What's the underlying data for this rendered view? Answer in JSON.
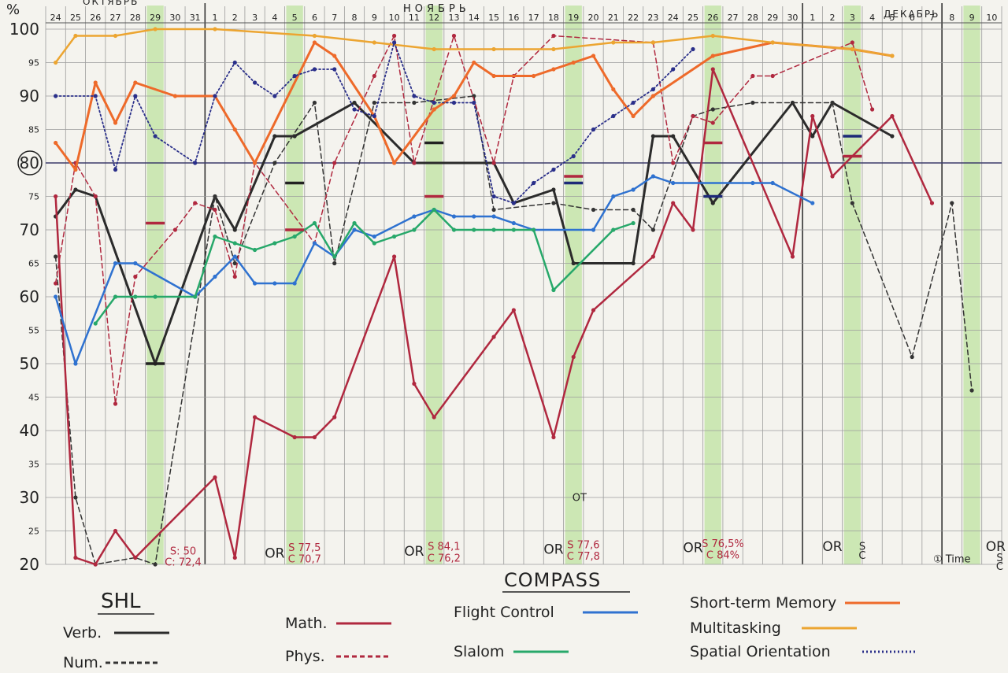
{
  "header": {
    "unit": "%",
    "months": [
      "ОКТЯБРЬ",
      "НОЯБРЬ",
      "ДЕКАБРЬ"
    ]
  },
  "chart_data": {
    "type": "line",
    "title": "COMPASS",
    "ylabel": "%",
    "ylim": [
      20,
      100
    ],
    "y_ticks": [
      20,
      25,
      30,
      35,
      40,
      45,
      50,
      55,
      60,
      65,
      70,
      75,
      80,
      85,
      90,
      95,
      100
    ],
    "days": [
      "24",
      "25",
      "26",
      "27",
      "28",
      "29",
      "30",
      "31",
      "1",
      "2",
      "3",
      "4",
      "5",
      "6",
      "7",
      "8",
      "9",
      "10",
      "11",
      "12",
      "13",
      "14",
      "15",
      "16",
      "17",
      "18",
      "19",
      "20",
      "21",
      "22",
      "23",
      "24",
      "25",
      "26",
      "27",
      "28",
      "29",
      "30",
      "1",
      "2",
      "3",
      "4",
      "5",
      "6",
      "7",
      "8",
      "9",
      "10"
    ],
    "shaded_days": [
      5,
      12,
      19,
      26,
      33,
      40,
      46
    ],
    "grid": true,
    "reference_line": 80,
    "series": [
      {
        "name": "Verb.",
        "color": "#2b2b2b",
        "dash": "solid",
        "width": 3,
        "points": [
          [
            0,
            72
          ],
          [
            1,
            76
          ],
          [
            2,
            75
          ],
          [
            5,
            50
          ],
          [
            8,
            75
          ],
          [
            9,
            70
          ],
          [
            11,
            84
          ],
          [
            12,
            84
          ],
          [
            15,
            89
          ],
          [
            18,
            80
          ],
          [
            22,
            80
          ],
          [
            23,
            74
          ],
          [
            25,
            76
          ],
          [
            26,
            65
          ],
          [
            29,
            65
          ],
          [
            30,
            84
          ],
          [
            31,
            84
          ],
          [
            33,
            74
          ],
          [
            37,
            89
          ],
          [
            38,
            84
          ],
          [
            39,
            89
          ],
          [
            42,
            84
          ]
        ]
      },
      {
        "name": "Num.",
        "color": "#333333",
        "dash": "6 4",
        "width": 1.5,
        "points": [
          [
            0,
            66
          ],
          [
            1,
            30
          ],
          [
            2,
            20
          ],
          [
            4,
            21
          ],
          [
            5,
            20
          ],
          [
            8,
            75
          ],
          [
            9,
            65
          ],
          [
            11,
            80
          ],
          [
            13,
            89
          ],
          [
            14,
            65
          ],
          [
            16,
            89
          ],
          [
            18,
            89
          ],
          [
            21,
            90
          ],
          [
            22,
            73
          ],
          [
            25,
            74
          ],
          [
            27,
            73
          ],
          [
            29,
            73
          ],
          [
            30,
            70
          ],
          [
            32,
            87
          ],
          [
            33,
            88
          ],
          [
            35,
            89
          ],
          [
            39,
            89
          ],
          [
            40,
            74
          ],
          [
            43,
            51
          ],
          [
            45,
            74
          ],
          [
            46,
            46
          ]
        ]
      },
      {
        "name": "Math.",
        "color": "#b0283f",
        "dash": "solid",
        "width": 2.5,
        "points": [
          [
            0,
            75
          ],
          [
            1,
            21
          ],
          [
            2,
            20
          ],
          [
            3,
            25
          ],
          [
            4,
            21
          ],
          [
            8,
            33
          ],
          [
            9,
            21
          ],
          [
            10,
            42
          ],
          [
            12,
            39
          ],
          [
            13,
            39
          ],
          [
            14,
            42
          ],
          [
            17,
            66
          ],
          [
            18,
            47
          ],
          [
            19,
            42
          ],
          [
            22,
            54
          ],
          [
            23,
            58
          ],
          [
            25,
            39
          ],
          [
            26,
            51
          ],
          [
            27,
            58
          ],
          [
            30,
            66
          ],
          [
            31,
            74
          ],
          [
            32,
            70
          ],
          [
            33,
            94
          ],
          [
            37,
            66
          ],
          [
            38,
            87
          ],
          [
            39,
            78
          ],
          [
            42,
            87
          ],
          [
            44,
            74
          ]
        ]
      },
      {
        "name": "Phys.",
        "color": "#b0283f",
        "dash": "6 4",
        "width": 1.5,
        "points": [
          [
            0,
            62
          ],
          [
            1,
            80
          ],
          [
            2,
            75
          ],
          [
            3,
            44
          ],
          [
            4,
            63
          ],
          [
            6,
            70
          ],
          [
            7,
            74
          ],
          [
            8,
            73
          ],
          [
            9,
            63
          ],
          [
            10,
            80
          ],
          [
            13,
            68
          ],
          [
            14,
            80
          ],
          [
            16,
            93
          ],
          [
            17,
            99
          ],
          [
            18,
            80
          ],
          [
            20,
            99
          ],
          [
            22,
            80
          ],
          [
            23,
            93
          ],
          [
            25,
            99
          ],
          [
            30,
            98
          ],
          [
            31,
            80
          ],
          [
            32,
            87
          ],
          [
            33,
            86
          ],
          [
            35,
            93
          ],
          [
            36,
            93
          ],
          [
            40,
            98
          ],
          [
            41,
            88
          ]
        ]
      },
      {
        "name": "Flight Control",
        "color": "#2f72d0",
        "dash": "solid",
        "width": 2.5,
        "points": [
          [
            0,
            60
          ],
          [
            1,
            50
          ],
          [
            3,
            65
          ],
          [
            4,
            65
          ],
          [
            7,
            60
          ],
          [
            8,
            63
          ],
          [
            9,
            66
          ],
          [
            10,
            62
          ],
          [
            11,
            62
          ],
          [
            12,
            62
          ],
          [
            13,
            68
          ],
          [
            14,
            66
          ],
          [
            15,
            70
          ],
          [
            16,
            69
          ],
          [
            18,
            72
          ],
          [
            19,
            73
          ],
          [
            20,
            72
          ],
          [
            21,
            72
          ],
          [
            22,
            72
          ],
          [
            23,
            71
          ],
          [
            24,
            70
          ],
          [
            27,
            70
          ],
          [
            28,
            75
          ],
          [
            29,
            76
          ],
          [
            30,
            78
          ],
          [
            31,
            77
          ],
          [
            35,
            77
          ],
          [
            36,
            77
          ],
          [
            38,
            74
          ]
        ]
      },
      {
        "name": "Slalom",
        "color": "#27a86a",
        "dash": "solid",
        "width": 2.5,
        "points": [
          [
            2,
            56
          ],
          [
            3,
            60
          ],
          [
            4,
            60
          ],
          [
            5,
            60
          ],
          [
            7,
            60
          ],
          [
            8,
            69
          ],
          [
            9,
            68
          ],
          [
            10,
            67
          ],
          [
            11,
            68
          ],
          [
            12,
            69
          ],
          [
            13,
            71
          ],
          [
            14,
            66
          ],
          [
            15,
            71
          ],
          [
            16,
            68
          ],
          [
            17,
            69
          ],
          [
            18,
            70
          ],
          [
            19,
            73
          ],
          [
            20,
            70
          ],
          [
            21,
            70
          ],
          [
            22,
            70
          ],
          [
            23,
            70
          ],
          [
            24,
            70
          ],
          [
            25,
            61
          ],
          [
            28,
            70
          ],
          [
            29,
            71
          ]
        ]
      },
      {
        "name": "Short-term Memory",
        "color": "#ee6a2a",
        "dash": "solid",
        "width": 3,
        "points": [
          [
            0,
            83
          ],
          [
            1,
            79
          ],
          [
            2,
            92
          ],
          [
            3,
            86
          ],
          [
            4,
            92
          ],
          [
            6,
            90
          ],
          [
            8,
            90
          ],
          [
            9,
            85
          ],
          [
            10,
            80
          ],
          [
            13,
            98
          ],
          [
            14,
            96
          ],
          [
            16,
            87
          ],
          [
            17,
            80
          ],
          [
            19,
            88
          ],
          [
            20,
            90
          ],
          [
            21,
            95
          ],
          [
            22,
            93
          ],
          [
            24,
            93
          ],
          [
            25,
            94
          ],
          [
            26,
            95
          ],
          [
            27,
            96
          ],
          [
            28,
            91
          ],
          [
            29,
            87
          ],
          [
            30,
            90
          ],
          [
            33,
            96
          ],
          [
            36,
            98
          ],
          [
            40,
            97
          ],
          [
            42,
            96
          ]
        ]
      },
      {
        "name": "Multitasking",
        "color": "#eca531",
        "dash": "solid",
        "width": 2.5,
        "points": [
          [
            0,
            95
          ],
          [
            1,
            99
          ],
          [
            3,
            99
          ],
          [
            5,
            100
          ],
          [
            8,
            100
          ],
          [
            13,
            99
          ],
          [
            16,
            98
          ],
          [
            19,
            97
          ],
          [
            22,
            97
          ],
          [
            25,
            97
          ],
          [
            28,
            98
          ],
          [
            30,
            98
          ],
          [
            33,
            99
          ],
          [
            36,
            98
          ],
          [
            40,
            97
          ],
          [
            42,
            96
          ]
        ]
      },
      {
        "name": "Spatial Orientation",
        "color": "#2a2f8a",
        "dash": "2 3",
        "width": 1.8,
        "points": [
          [
            0,
            90
          ],
          [
            2,
            90
          ],
          [
            3,
            79
          ],
          [
            4,
            90
          ],
          [
            5,
            84
          ],
          [
            7,
            80
          ],
          [
            8,
            90
          ],
          [
            9,
            95
          ],
          [
            10,
            92
          ],
          [
            11,
            90
          ],
          [
            12,
            93
          ],
          [
            13,
            94
          ],
          [
            14,
            94
          ],
          [
            15,
            88
          ],
          [
            16,
            87
          ],
          [
            17,
            98
          ],
          [
            18,
            90
          ],
          [
            19,
            89
          ],
          [
            20,
            89
          ],
          [
            21,
            89
          ],
          [
            22,
            75
          ],
          [
            23,
            74
          ],
          [
            24,
            77
          ],
          [
            25,
            79
          ],
          [
            26,
            81
          ],
          [
            27,
            85
          ],
          [
            28,
            87
          ],
          [
            29,
            89
          ],
          [
            30,
            91
          ],
          [
            31,
            94
          ],
          [
            32,
            97
          ]
        ]
      }
    ],
    "markers": [
      {
        "day": 5,
        "value": 50,
        "color": "#222222"
      },
      {
        "day": 5,
        "value": 71,
        "color": "#b0283f"
      },
      {
        "day": 12,
        "value": 77,
        "color": "#222222"
      },
      {
        "day": 12,
        "value": 70,
        "color": "#b0283f"
      },
      {
        "day": 19,
        "value": 83,
        "color": "#222222"
      },
      {
        "day": 19,
        "value": 75,
        "color": "#b0283f"
      },
      {
        "day": 26,
        "value": 78,
        "color": "#b0283f"
      },
      {
        "day": 26,
        "value": 77,
        "color": "#1d2a78"
      },
      {
        "day": 33,
        "value": 83,
        "color": "#b0283f"
      },
      {
        "day": 33,
        "value": 75,
        "color": "#1d2a78"
      },
      {
        "day": 40,
        "value": 84,
        "color": "#1d2a78"
      },
      {
        "day": 40,
        "value": 81,
        "color": "#b0283f"
      }
    ],
    "annotations": [
      {
        "day": 6.4,
        "value": 21.5,
        "text": "S: 50",
        "color": "#b0283f"
      },
      {
        "day": 6.4,
        "value": 19.8,
        "text": "C: 72,4",
        "color": "#b0283f"
      },
      {
        "day": 11,
        "value": 21,
        "text": "OR",
        "color": "#222222"
      },
      {
        "day": 12.5,
        "value": 22,
        "text": "S 77,5",
        "color": "#b0283f"
      },
      {
        "day": 12.5,
        "value": 20.3,
        "text": "C 70,7",
        "color": "#b0283f"
      },
      {
        "day": 18,
        "value": 21.3,
        "text": "OR",
        "color": "#222222"
      },
      {
        "day": 19.5,
        "value": 22.2,
        "text": "S 84,1",
        "color": "#b0283f"
      },
      {
        "day": 19.5,
        "value": 20.4,
        "text": "C 76,2",
        "color": "#b0283f"
      },
      {
        "day": 25,
        "value": 21.6,
        "text": "OR",
        "color": "#222222"
      },
      {
        "day": 26.5,
        "value": 22.4,
        "text": "S 77,6",
        "color": "#b0283f"
      },
      {
        "day": 26.5,
        "value": 20.7,
        "text": "C 77,8",
        "color": "#b0283f"
      },
      {
        "day": 32,
        "value": 21.8,
        "text": "OR",
        "color": "#222222"
      },
      {
        "day": 33.5,
        "value": 22.6,
        "text": "S 76,5%",
        "color": "#b0283f"
      },
      {
        "day": 33.5,
        "value": 20.9,
        "text": "C 84%",
        "color": "#b0283f"
      },
      {
        "day": 39,
        "value": 22,
        "text": "OR",
        "color": "#222222"
      },
      {
        "day": 40.5,
        "value": 22.2,
        "text": "S",
        "color": "#222222"
      },
      {
        "day": 40.5,
        "value": 20.8,
        "text": "C",
        "color": "#222222"
      },
      {
        "day": 45,
        "value": 20.3,
        "text": "① Time",
        "color": "#222222"
      },
      {
        "day": 47.2,
        "value": 22,
        "text": "OR",
        "color": "#222222"
      },
      {
        "day": 47.4,
        "value": 20.5,
        "text": "S",
        "color": "#222222"
      },
      {
        "day": 47.4,
        "value": 19.2,
        "text": "C",
        "color": "#222222"
      },
      {
        "day": 26.3,
        "value": 29.5,
        "text": "ОТ",
        "color": "#222222"
      }
    ]
  },
  "legend": {
    "shl_title": "SHL",
    "items": [
      {
        "label": "Verb.",
        "color": "#2b2b2b",
        "dash": "solid"
      },
      {
        "label": "Num.",
        "color": "#333333",
        "dash": "6 4"
      },
      {
        "label": "Math.",
        "color": "#b0283f",
        "dash": "solid"
      },
      {
        "label": "Phys.",
        "color": "#b0283f",
        "dash": "6 4"
      },
      {
        "label": "Flight Control",
        "color": "#2f72d0",
        "dash": "solid"
      },
      {
        "label": "Slalom",
        "color": "#27a86a",
        "dash": "solid"
      },
      {
        "label": "Short-term Memory",
        "color": "#ee6a2a",
        "dash": "solid"
      },
      {
        "label": "Multitasking",
        "color": "#eca531",
        "dash": "solid"
      },
      {
        "label": "Spatial Orientation",
        "color": "#2a2f8a",
        "dash": "2 3"
      }
    ]
  }
}
